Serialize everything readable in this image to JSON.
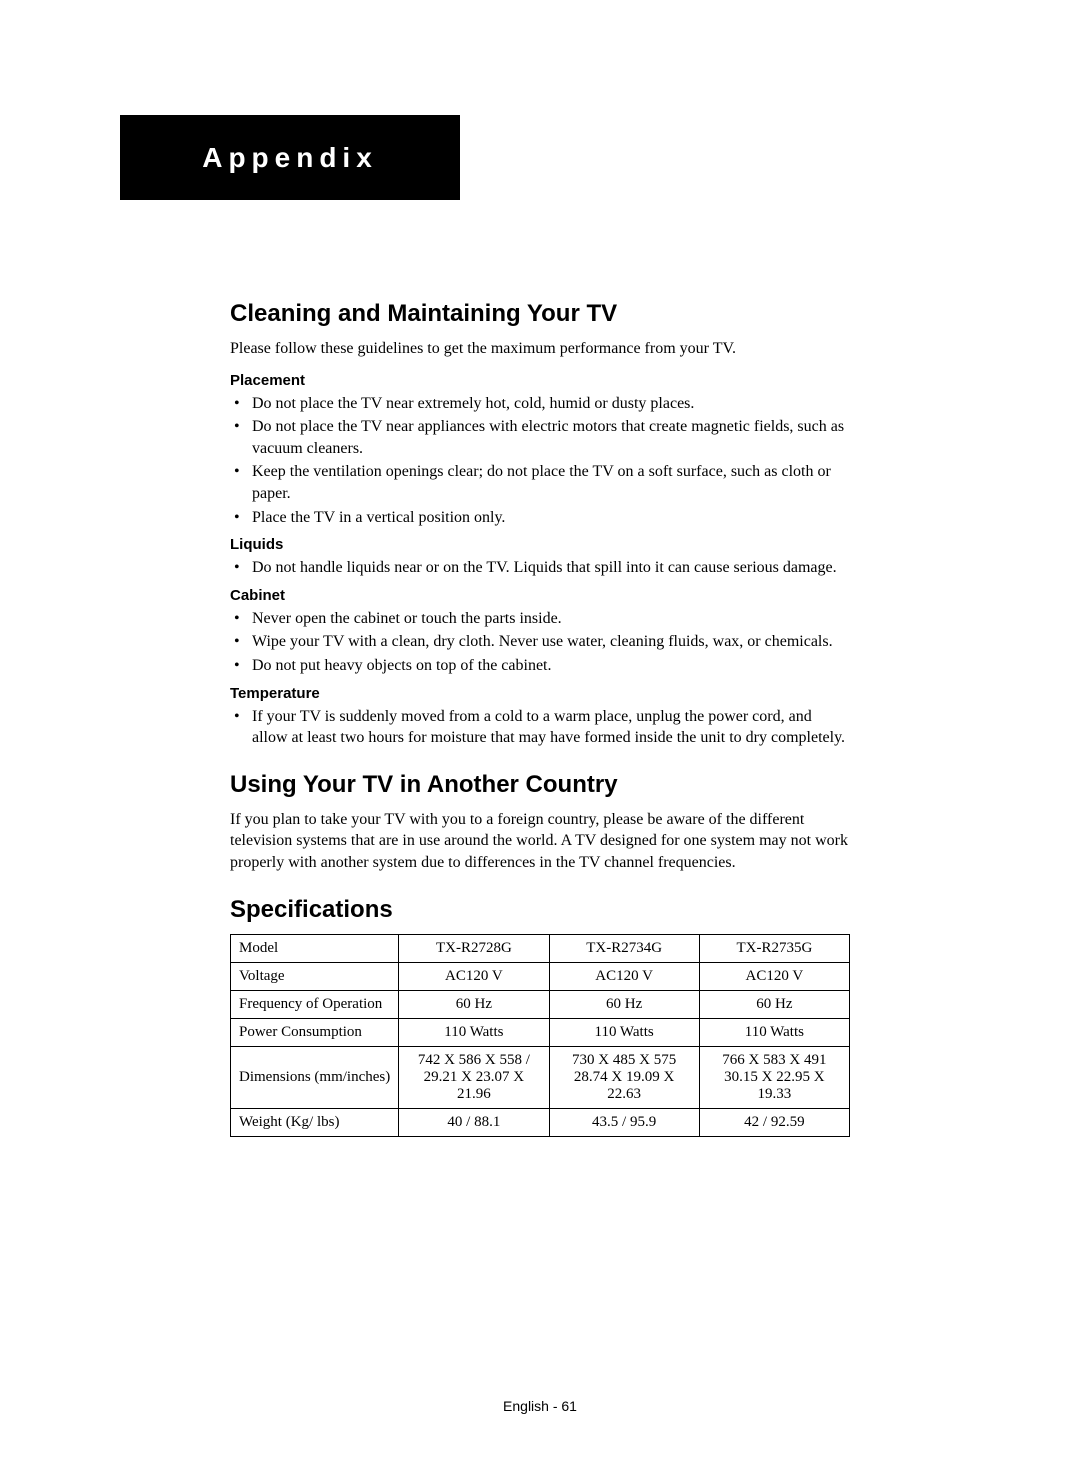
{
  "header": {
    "title": "Appendix"
  },
  "section1": {
    "heading": "Cleaning and Maintaining Your TV",
    "intro": "Please follow these guidelines to get the maximum performance from your TV.",
    "sub_placement": "Placement",
    "placement_items": [
      "Do not place the TV near extremely hot, cold, humid or dusty places.",
      "Do not place the TV near appliances with electric motors that create magnetic fields, such as vacuum cleaners.",
      "Keep the ventilation openings clear; do not place the TV on a soft surface, such as cloth or paper.",
      "Place the TV in a vertical position only."
    ],
    "sub_liquids": "Liquids",
    "liquids_items": [
      "Do not handle liquids near or on the TV. Liquids that spill into it can cause serious damage."
    ],
    "sub_cabinet": "Cabinet",
    "cabinet_items": [
      "Never open the cabinet or touch the parts inside.",
      "Wipe your TV with a clean, dry cloth. Never use water, cleaning fluids, wax, or chemicals.",
      "Do not put heavy objects on top of the cabinet."
    ],
    "sub_temperature": "Temperature",
    "temperature_items": [
      "If your TV is suddenly moved from a cold to a warm place, unplug the power cord, and allow at least two hours for moisture that may have formed inside the unit to dry completely."
    ]
  },
  "section2": {
    "heading": "Using Your TV in Another Country",
    "para": "If you plan to take your TV with you to a foreign country, please be aware of the different television systems that are in use around the world. A TV designed for one system may not work properly with another system due to differences in the TV channel frequencies."
  },
  "section3": {
    "heading": "Specifications",
    "table": {
      "type": "table",
      "border_color": "#000000",
      "label_align": "left",
      "value_align": "center",
      "rows": [
        {
          "label": "Model",
          "c1": "TX-R2728G",
          "c2": "TX-R2734G",
          "c3": "TX-R2735G"
        },
        {
          "label": "Voltage",
          "c1": "AC120 V",
          "c2": "AC120 V",
          "c3": "AC120 V"
        },
        {
          "label": "Frequency of Operation",
          "c1": "60 Hz",
          "c2": "60 Hz",
          "c3": "60 Hz"
        },
        {
          "label": "Power Consumption",
          "c1": "110 Watts",
          "c2": "110 Watts",
          "c3": "110 Watts"
        },
        {
          "label": "Dimensions (mm/inches)",
          "c1": "742 X 586 X 558 / 29.21 X 23.07 X 21.96",
          "c2": "730 X 485 X 575 28.74 X 19.09 X 22.63",
          "c3": "766 X 583 X 491 30.15 X 22.95 X 19.33"
        },
        {
          "label": "Weight (Kg/ lbs)",
          "c1": "40 / 88.1",
          "c2": "43.5 / 95.9",
          "c3": "42 / 92.59"
        }
      ]
    }
  },
  "footer": {
    "text": "English - 61"
  }
}
